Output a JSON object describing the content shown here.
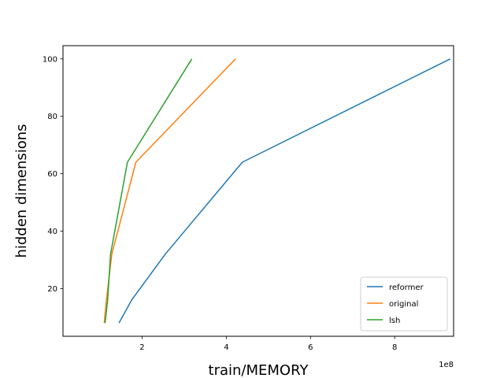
{
  "chart_data": {
    "type": "line",
    "title": "",
    "xlabel": "train/MEMORY",
    "ylabel": "hidden dimensions",
    "x_multiplier_label": "1e8",
    "xlim": [
      0.12,
      9.4
    ],
    "ylim": [
      3.4,
      104.6
    ],
    "xticks": [
      2,
      4,
      6,
      8
    ],
    "yticks": [
      20,
      40,
      60,
      80,
      100
    ],
    "grid": false,
    "legend_position": "lower right",
    "series": [
      {
        "name": "reformer",
        "color": "#1f77b4",
        "x": [
          1.45,
          1.75,
          2.55,
          4.38,
          9.32
        ],
        "y": [
          8,
          16,
          32,
          64,
          100
        ]
      },
      {
        "name": "original",
        "color": "#ff7f0e",
        "x": [
          1.1,
          1.15,
          1.28,
          1.85,
          4.22
        ],
        "y": [
          8,
          16,
          32,
          64,
          100
        ]
      },
      {
        "name": "lsh",
        "color": "#2ca02c",
        "x": [
          1.12,
          1.18,
          1.25,
          1.65,
          3.18
        ],
        "y": [
          8,
          16,
          32,
          64,
          100
        ]
      }
    ]
  }
}
